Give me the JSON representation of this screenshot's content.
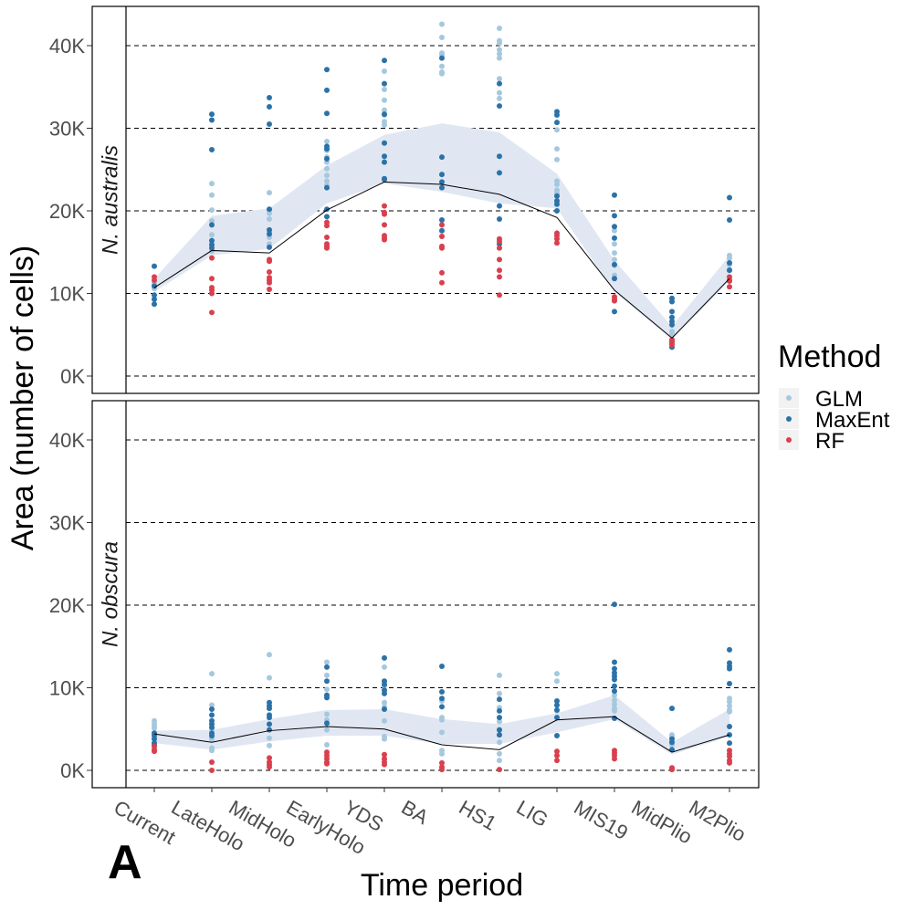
{
  "chart_data": {
    "type": "scatter",
    "title": "",
    "panel_tag": "A",
    "xlabel": "Time period",
    "ylabel": "Area (number of cells)",
    "categories": [
      "Current",
      "LateHolo",
      "MidHolo",
      "EarlyHolo",
      "YDS",
      "BA",
      "HS1",
      "LIG",
      "MIS19",
      "MidPlio",
      "M2Plio"
    ],
    "y_ticks": [
      0,
      10000,
      20000,
      30000,
      40000
    ],
    "y_tick_labels": [
      "0K",
      "10K",
      "20K",
      "30K",
      "40K"
    ],
    "ylim": [
      -2000,
      44000
    ],
    "grid": "horizontal dashed at major y ticks",
    "legend": {
      "title": "Method",
      "position": "right",
      "entries": [
        {
          "name": "GLM",
          "color": "#a6c8de"
        },
        {
          "name": "MaxEnt",
          "color": "#2b72a8"
        },
        {
          "name": "RF",
          "color": "#d9404e"
        }
      ]
    },
    "ribbon_color": "#e1e7f2",
    "mean_line_color": "#000000",
    "panels": [
      {
        "strip_label": "N. australis",
        "mean": [
          10700,
          15200,
          14900,
          20100,
          23500,
          23200,
          22000,
          19200,
          10400,
          4600,
          11800
        ],
        "ribbon_upper": [
          11800,
          19400,
          20300,
          25500,
          29200,
          30600,
          29500,
          24500,
          14000,
          6000,
          14600
        ],
        "ribbon_lower": [
          10200,
          14600,
          15400,
          20900,
          23300,
          22300,
          20900,
          20300,
          10200,
          4400,
          11500
        ],
        "points": {
          "GLM": [
            [
              11300,
              10900,
              10600
            ],
            [
              23300,
              21900,
              20100,
              18800,
              17100,
              15100
            ],
            [
              22200,
              20100,
              19700,
              19000,
              17500,
              16800,
              16000
            ],
            [
              28400,
              27300,
              26500,
              25900,
              25100,
              24300,
              23600,
              23100
            ],
            [
              36900,
              34700,
              33400,
              32200,
              31600,
              30800,
              30400
            ],
            [
              42600,
              41000,
              39100,
              38900,
              37500,
              36800,
              36600
            ],
            [
              42100,
              40600,
              40300,
              39500,
              39000,
              38500,
              36000,
              34300,
              33600
            ],
            [
              29800,
              27500,
              26200,
              23600,
              23200,
              22500,
              22100
            ],
            [
              17600,
              16000,
              14900,
              14100,
              13400,
              12200
            ],
            [
              5400,
              5100
            ],
            [
              14600,
              14300,
              13500,
              12900
            ]
          ],
          "MaxEnt": [
            [
              13300,
              10900,
              9800,
              9300,
              8700
            ],
            [
              31700,
              31000,
              27400,
              18300,
              16400,
              15900,
              15500
            ],
            [
              33700,
              32600,
              30500,
              20200,
              17700,
              17200,
              15600
            ],
            [
              37100,
              34600,
              31800,
              27800,
              27500,
              26300,
              22800,
              20200,
              19300
            ],
            [
              38200,
              35400,
              31700,
              28200,
              26600,
              25900,
              23900,
              23800
            ],
            [
              38500,
              26500,
              24400,
              23500,
              22800,
              18900,
              17600
            ],
            [
              35400,
              32700,
              26600,
              24600,
              20600,
              19000,
              16000
            ],
            [
              32000,
              31600,
              30700,
              21800,
              21200,
              20800,
              20000
            ],
            [
              21900,
              19400,
              18100,
              16700,
              13500,
              11800,
              7800
            ],
            [
              9400,
              9000,
              7800,
              7100,
              6600,
              6200,
              3500
            ],
            [
              21600,
              18900,
              13700,
              12800,
              11600,
              11500
            ]
          ],
          "RF": [
            [
              12000,
              11600
            ],
            [
              14300,
              11800,
              10700,
              10400,
              10000,
              7700
            ],
            [
              14100,
              13900,
              12600,
              11900,
              11600,
              11300,
              10500
            ],
            [
              18600,
              18200,
              16800,
              16000,
              15700,
              15500
            ],
            [
              20600,
              19800,
              19600,
              18300,
              17000,
              16700,
              16500
            ],
            [
              18300,
              16900,
              15700,
              15500,
              12500,
              11300
            ],
            [
              16600,
              16300,
              15500,
              14100,
              12800,
              12000,
              9800
            ],
            [
              17300,
              17000,
              16600,
              16100
            ],
            [
              9600,
              9300,
              9100
            ],
            [
              4400,
              4200,
              4000,
              3800
            ],
            [
              12000,
              11500,
              10800
            ]
          ]
        }
      },
      {
        "strip_label": "N. obscura",
        "mean": [
          4400,
          3400,
          4800,
          5300,
          5000,
          3100,
          2500,
          6100,
          6500,
          2200,
          4300
        ],
        "ribbon_upper": [
          4800,
          4900,
          6200,
          7300,
          7400,
          6200,
          5600,
          6900,
          9100,
          3400,
          7400
        ],
        "ribbon_lower": [
          3300,
          2500,
          3500,
          4200,
          4200,
          3200,
          3200,
          4600,
          6200,
          1900,
          4100
        ],
        "points": {
          "GLM": [
            [
              6000,
              5600,
              5300,
              5100
            ],
            [
              11700,
              7900,
              5000,
              4000,
              3800,
              2700,
              2400
            ],
            [
              14000,
              11200,
              3900,
              3000
            ],
            [
              13100,
              11500,
              9800,
              6800,
              6100,
              4900,
              3100
            ],
            [
              12500,
              10200,
              8200,
              7700,
              6000,
              4100,
              3800
            ],
            [
              8400,
              6400,
              6100,
              4600,
              2400,
              2000
            ],
            [
              11500,
              9300,
              7600,
              5900,
              3400,
              2000,
              1200
            ],
            [
              11700,
              10800,
              7200
            ],
            [
              9100,
              8500,
              8000,
              7500,
              7200
            ],
            [
              4300,
              4000,
              3100
            ],
            [
              8700,
              8300,
              7800,
              7300,
              7100
            ]
          ],
          "MaxEnt": [
            [
              4500,
              4200,
              3800,
              3300,
              3100
            ],
            [
              7400,
              6700,
              6000,
              5600,
              5200,
              4500,
              4200
            ],
            [
              8200,
              7800,
              7500,
              6700,
              6400,
              5600,
              4900
            ],
            [
              12500,
              10800,
              9100,
              8800,
              5700
            ],
            [
              13600,
              10800,
              10400,
              9700,
              9300,
              7400
            ],
            [
              12600,
              9500,
              8700,
              7700
            ],
            [
              8600,
              7200,
              6400,
              4900,
              4300
            ],
            [
              8400,
              7900,
              7300,
              6400,
              4200
            ],
            [
              20100,
              13100,
              12300,
              11800,
              11400,
              11000,
              10200,
              9600,
              6300
            ],
            [
              7500,
              3800,
              3400,
              2500
            ],
            [
              14600,
              13000,
              12600,
              12300,
              10500,
              5300,
              4300,
              3300
            ]
          ],
          "RF": [
            [
              2900,
              2500,
              2300
            ],
            [
              1000,
              0
            ],
            [
              1500,
              1000,
              700,
              400
            ],
            [
              2200,
              1800,
              1400,
              1000,
              800
            ],
            [
              1900,
              1400,
              1000,
              700
            ],
            [
              900,
              400,
              100
            ],
            [
              100
            ],
            [
              2300,
              1800,
              1200
            ],
            [
              2400,
              2100,
              1800,
              1400
            ],
            [
              300,
              100
            ],
            [
              2400,
              2000,
              1700,
              1200,
              900
            ]
          ]
        }
      }
    ]
  }
}
